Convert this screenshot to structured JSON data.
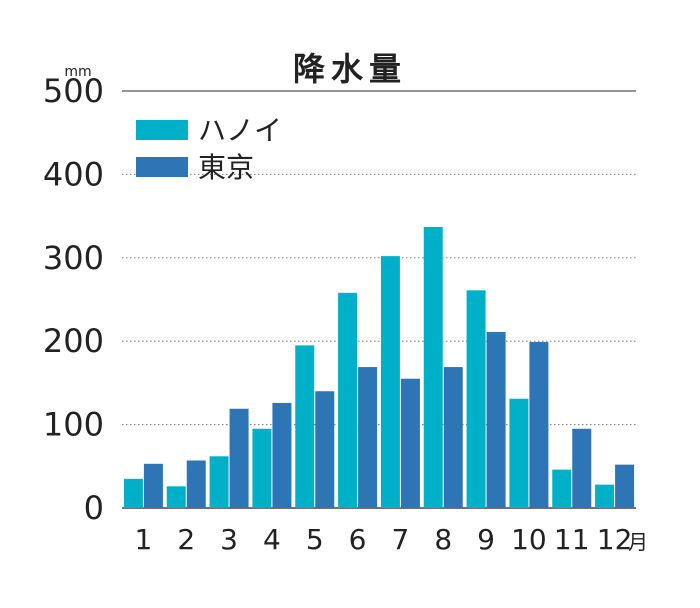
{
  "chart_data": {
    "type": "bar",
    "title": "降水量",
    "y_unit": "mm",
    "x_unit": "月",
    "categories": [
      "1",
      "2",
      "3",
      "4",
      "5",
      "6",
      "7",
      "8",
      "9",
      "10",
      "11",
      "12"
    ],
    "series": [
      {
        "name": "ハノイ",
        "color": "#00b0c8",
        "values": [
          35,
          26,
          62,
          95,
          195,
          258,
          302,
          337,
          261,
          131,
          46,
          28
        ]
      },
      {
        "name": "東京",
        "color": "#2e75b6",
        "values": [
          53,
          57,
          119,
          126,
          140,
          169,
          155,
          169,
          211,
          199,
          95,
          52
        ]
      }
    ],
    "ylim": [
      0,
      500
    ],
    "yticks": [
      "0",
      "100",
      "200",
      "300",
      "400",
      "500"
    ],
    "grid": true,
    "legend": "top-left"
  }
}
